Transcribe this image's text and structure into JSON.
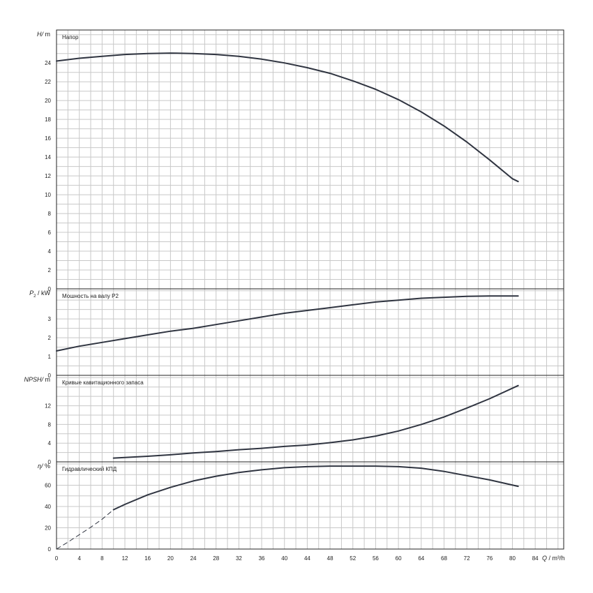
{
  "chart_data": [
    {
      "type": "line",
      "title": "Напор",
      "ylabel_sym": "H/",
      "ylabel_unit": "m",
      "ylim": [
        0,
        27.5
      ],
      "yticks": [
        0,
        2,
        4,
        6,
        8,
        10,
        12,
        14,
        16,
        18,
        20,
        22,
        24
      ],
      "series": [
        {
          "x": [
            0,
            4,
            8,
            12,
            16,
            20,
            24,
            28,
            32,
            36,
            40,
            44,
            48,
            52,
            56,
            60,
            64,
            68,
            72,
            76,
            80,
            81
          ],
          "y": [
            24.2,
            24.5,
            24.7,
            24.9,
            25.0,
            25.05,
            25.0,
            24.9,
            24.7,
            24.4,
            24.0,
            23.5,
            22.9,
            22.1,
            21.2,
            20.1,
            18.8,
            17.3,
            15.6,
            13.7,
            11.7,
            11.4
          ]
        }
      ]
    },
    {
      "type": "line",
      "title": "Мошность на валу P2",
      "ylabel_sym": "P",
      "ylabel_sub": "2",
      "ylabel_unit": "kW",
      "ylim": [
        0,
        4.6
      ],
      "yticks": [
        0,
        1,
        2,
        3
      ],
      "series": [
        {
          "x": [
            0,
            4,
            8,
            12,
            16,
            20,
            24,
            28,
            32,
            36,
            40,
            44,
            48,
            52,
            56,
            60,
            64,
            68,
            72,
            76,
            81
          ],
          "y": [
            1.3,
            1.55,
            1.75,
            1.95,
            2.15,
            2.35,
            2.5,
            2.7,
            2.9,
            3.1,
            3.3,
            3.45,
            3.6,
            3.75,
            3.9,
            4.0,
            4.1,
            4.15,
            4.2,
            4.22,
            4.22
          ]
        }
      ]
    },
    {
      "type": "line",
      "title": "Кривые кавитационного запаса",
      "ylabel_sym": "NPSH/",
      "ylabel_unit": "m",
      "ylim": [
        0,
        18.5
      ],
      "yticks": [
        0,
        4,
        8,
        12
      ],
      "series": [
        {
          "x": [
            10,
            16,
            20,
            24,
            28,
            32,
            36,
            40,
            44,
            48,
            52,
            56,
            60,
            64,
            68,
            72,
            76,
            81
          ],
          "y": [
            0.8,
            1.2,
            1.5,
            1.9,
            2.2,
            2.6,
            2.9,
            3.3,
            3.6,
            4.1,
            4.7,
            5.5,
            6.6,
            8.0,
            9.6,
            11.5,
            13.5,
            16.3
          ]
        }
      ]
    },
    {
      "type": "line",
      "title": "Гидравлический КПД",
      "ylabel_sym": "η/",
      "ylabel_unit": "%",
      "ylim": [
        0,
        82
      ],
      "yticks": [
        0,
        20,
        40,
        60
      ],
      "series": [
        {
          "x": [
            10,
            12,
            16,
            20,
            24,
            28,
            32,
            36,
            40,
            44,
            48,
            52,
            56,
            60,
            64,
            68,
            72,
            76,
            81
          ],
          "y": [
            37,
            42,
            51,
            58,
            64,
            68.5,
            72,
            74.5,
            76.5,
            77.5,
            78,
            78,
            78,
            77.5,
            76,
            73,
            69,
            65,
            59
          ]
        },
        {
          "style": "dashed",
          "x": [
            0,
            2,
            4,
            6,
            8,
            10
          ],
          "y": [
            0,
            6.5,
            13.5,
            20.5,
            28,
            37
          ]
        }
      ]
    }
  ],
  "xaxis": {
    "label_sym": "Q",
    "label_unit": "m³/h",
    "xlim": [
      0,
      89
    ],
    "ticks": [
      0,
      4,
      8,
      12,
      16,
      20,
      24,
      28,
      32,
      36,
      40,
      44,
      48,
      52,
      56,
      60,
      64,
      68,
      72,
      76,
      80,
      84
    ]
  },
  "grid": "on"
}
